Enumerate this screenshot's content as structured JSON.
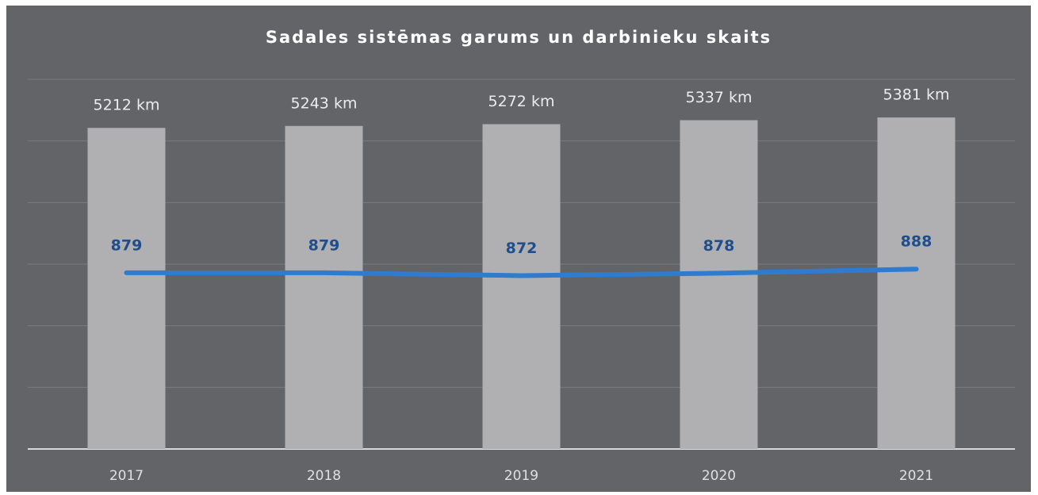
{
  "chart_data": {
    "type": "bar_line",
    "title": "Sadales sistēmas garums un darbinieku skaits",
    "categories": [
      "2017",
      "2018",
      "2019",
      "2020",
      "2021"
    ],
    "series": [
      {
        "type": "bar",
        "color": "#b0b0b2",
        "values": [
          5212,
          5243,
          5272,
          5337,
          5381
        ],
        "value_labels": [
          "5212 km",
          "5243 km",
          "5272 km",
          "5337 km",
          "5381 km"
        ]
      },
      {
        "type": "line",
        "axis": "y2",
        "color": "#2f7bd0",
        "values": [
          879,
          879,
          872,
          878,
          888
        ]
      }
    ],
    "ylim": [
      0,
      6000
    ],
    "yticks": [
      0,
      1000,
      2000,
      3000,
      4000,
      5000,
      6000
    ],
    "y2lim": [
      450,
      1350
    ],
    "grid": true
  }
}
